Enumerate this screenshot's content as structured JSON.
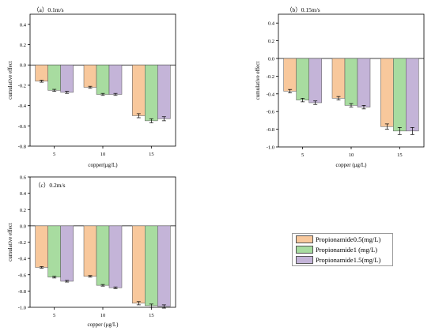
{
  "colors": {
    "Propionamide0.5(mg/L)": "#f8c89c",
    "Propionamide1  (mg/L)": "#a8dca0",
    "Propionamide1.5(mg/L)": "#c4b4d8",
    "bar_edge": "#555555",
    "axis": "#000000"
  },
  "legend": {
    "items": [
      "Propionamide0.5(mg/L)",
      "Propionamide1  (mg/L)",
      "Propionamide1.5(mg/L)"
    ]
  },
  "chart_data": [
    {
      "type": "bar",
      "title": "（a）0.1m/s",
      "xlabel": "copper(μg/L)",
      "ylabel": "cumulative effect",
      "categories": [
        "5",
        "10",
        "15"
      ],
      "ylim": [
        -0.8,
        0.5
      ],
      "yticks": [
        -0.8,
        -0.6,
        -0.4,
        -0.2,
        0.0,
        0.2,
        0.4
      ],
      "yticklabels": [
        "-0.8",
        "-0.6",
        "-0.4",
        "-0.2",
        "0.0",
        "0.2",
        "0.4"
      ],
      "series": [
        {
          "name": "Propionamide0.5(mg/L)",
          "values": [
            -0.16,
            -0.22,
            -0.5
          ],
          "errors": [
            0.01,
            0.01,
            0.02
          ]
        },
        {
          "name": "Propionamide1  (mg/L)",
          "values": [
            -0.25,
            -0.29,
            -0.55
          ],
          "errors": [
            0.01,
            0.01,
            0.02
          ]
        },
        {
          "name": "Propionamide1.5(mg/L)",
          "values": [
            -0.27,
            -0.29,
            -0.53
          ],
          "errors": [
            0.01,
            0.01,
            0.02
          ]
        }
      ]
    },
    {
      "type": "bar",
      "title": "（b）0.15m/s",
      "xlabel": "copper (μg/L)",
      "ylabel": "cumulative effect",
      "categories": [
        "5",
        "10",
        "15"
      ],
      "ylim": [
        -1.0,
        0.5
      ],
      "yticks": [
        -1.0,
        -0.8,
        -0.6,
        -0.4,
        -0.2,
        0.0,
        0.2,
        0.4
      ],
      "yticklabels": [
        "-1.0",
        "-0.8",
        "-0.6",
        "-0.4",
        "-0.2",
        "0.0",
        "0.2",
        "0.4"
      ],
      "series": [
        {
          "name": "Propionamide0.5(mg/L)",
          "values": [
            -0.37,
            -0.45,
            -0.77
          ],
          "errors": [
            0.02,
            0.02,
            0.03
          ]
        },
        {
          "name": "Propionamide1  (mg/L)",
          "values": [
            -0.47,
            -0.53,
            -0.82
          ],
          "errors": [
            0.02,
            0.02,
            0.04
          ]
        },
        {
          "name": "Propionamide1.5(mg/L)",
          "values": [
            -0.5,
            -0.55,
            -0.82
          ],
          "errors": [
            0.02,
            0.02,
            0.04
          ]
        }
      ]
    },
    {
      "type": "bar",
      "title": "（c）0.2m/s",
      "xlabel": "copper (μg/L)",
      "ylabel": "cumulative effect",
      "categories": [
        "5",
        "10",
        "15"
      ],
      "ylim": [
        -1.0,
        0.6
      ],
      "yticks": [
        -1.0,
        -0.8,
        -0.6,
        -0.4,
        -0.2,
        0.0,
        0.2,
        0.4,
        0.6
      ],
      "yticklabels": [
        "-1.0",
        "-0.8",
        "-0.6",
        "-0.4",
        "-0.2",
        "0.0",
        "0.2",
        "0.4",
        "0.6"
      ],
      "series": [
        {
          "name": "Propionamide0.5(mg/L)",
          "values": [
            -0.51,
            -0.62,
            -0.95
          ],
          "errors": [
            0.01,
            0.01,
            0.02
          ]
        },
        {
          "name": "Propionamide1  (mg/L)",
          "values": [
            -0.63,
            -0.73,
            -0.98
          ],
          "errors": [
            0.01,
            0.01,
            0.02
          ]
        },
        {
          "name": "Propionamide1.5(mg/L)",
          "values": [
            -0.68,
            -0.76,
            -0.99
          ],
          "errors": [
            0.01,
            0.01,
            0.02
          ]
        }
      ]
    }
  ]
}
